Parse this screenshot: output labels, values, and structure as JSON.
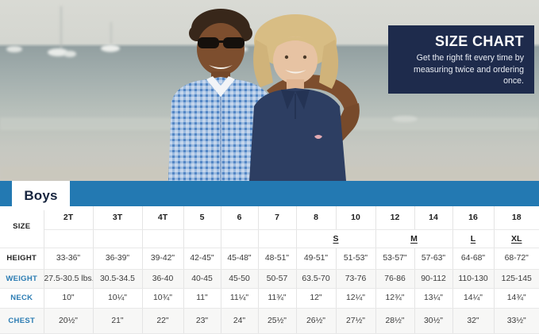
{
  "hero": {
    "badge": {
      "title": "SIZE CHART",
      "subtitle": "Get the right fit every time by measuring twice and ordering once.",
      "bg_color": "#1e2b4c"
    }
  },
  "tab": {
    "label": "Boys"
  },
  "colors": {
    "bar_blue": "#2379b2",
    "badge_navy": "#1e2b4c",
    "row_label_blue": "#2b7cb3"
  },
  "table": {
    "corner_label": "SIZE",
    "columns": [
      "2T",
      "3T",
      "4T",
      "5",
      "6",
      "7",
      "8",
      "10",
      "12",
      "14",
      "16",
      "18"
    ],
    "group_lead_empty": 6,
    "size_groups": [
      {
        "label": "S",
        "span": 2
      },
      {
        "label": "M",
        "span": 2
      },
      {
        "label": "L",
        "span": 1
      },
      {
        "label": "XL",
        "span": 1
      }
    ],
    "rows": [
      {
        "label": "HEIGHT",
        "label_style": "dark",
        "values": [
          "33-36\"",
          "36-39\"",
          "39-42\"",
          "42-45\"",
          "45-48\"",
          "48-51\"",
          "49-51\"",
          "51-53\"",
          "53-57\"",
          "57-63\"",
          "64-68\"",
          "68-72\""
        ]
      },
      {
        "label": "WEIGHT",
        "label_style": "blue",
        "values": [
          "27.5-30.5 lbs.",
          "30.5-34.5",
          "36-40",
          "40-45",
          "45-50",
          "50-57",
          "63.5-70",
          "73-76",
          "76-86",
          "90-112",
          "110-130",
          "125-145"
        ]
      },
      {
        "label": "NECK",
        "label_style": "blue",
        "values": [
          "10\"",
          "10¼\"",
          "10¾\"",
          "11\"",
          "11¼\"",
          "11¾\"",
          "12\"",
          "12¼\"",
          "12¾\"",
          "13¼\"",
          "14¼\"",
          "14¾\""
        ]
      },
      {
        "label": "CHEST",
        "label_style": "blue",
        "values": [
          "20½\"",
          "21\"",
          "22\"",
          "23\"",
          "24\"",
          "25½\"",
          "26½\"",
          "27½\"",
          "28½\"",
          "30½\"",
          "32\"",
          "33½\""
        ]
      }
    ]
  }
}
